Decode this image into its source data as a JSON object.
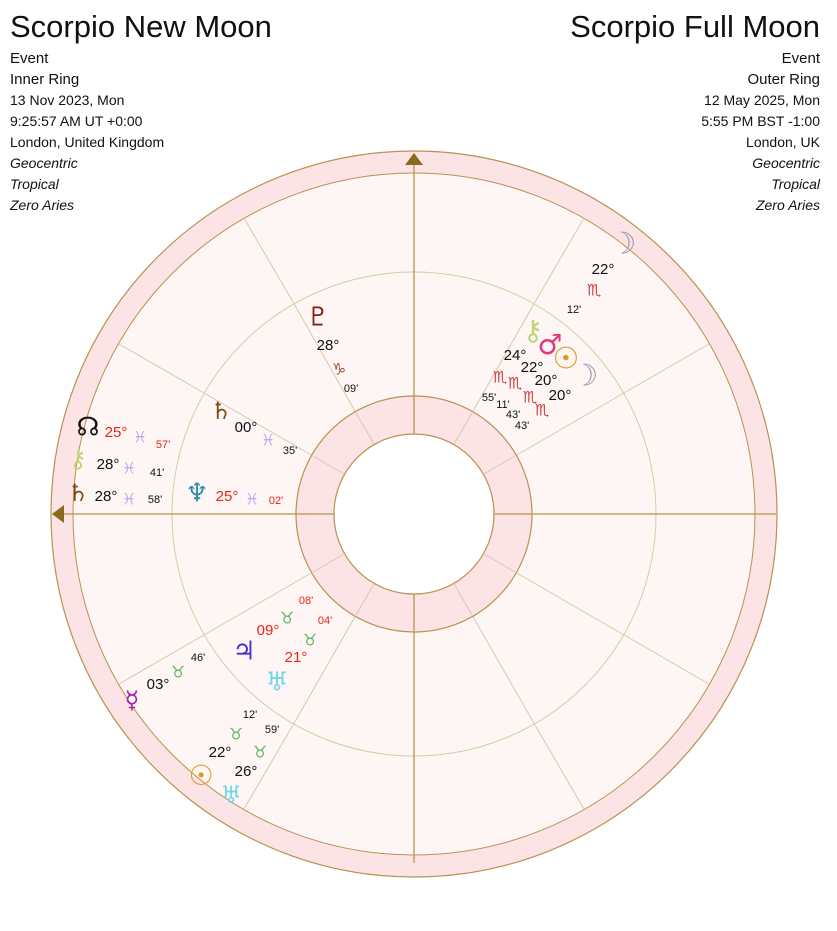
{
  "inner_chart": {
    "title": "Scorpio New Moon",
    "type": "Event",
    "ring": "Inner Ring",
    "date": "13 Nov 2023, Mon",
    "time": "9:25:57 AM UT +0:00",
    "location": "London, United Kingdom",
    "zodiac_lines": [
      "Geocentric",
      "Tropical",
      "Zero Aries"
    ]
  },
  "outer_chart": {
    "title": "Scorpio Full Moon",
    "type": "Event",
    "ring": "Outer Ring",
    "date": "12 May 2025, Mon",
    "time": "5:55 PM BST -1:00",
    "location": "London, UK",
    "zodiac_lines": [
      "Geocentric",
      "Tropical",
      "Zero Aries"
    ]
  },
  "colors": {
    "ring_fill": "#fbe3e6",
    "wheel_line": "#b8934f",
    "house_line": "#d7cba8",
    "axis_arrow": "#8a6a1e",
    "red_text": "#e8231a",
    "moon": "#9b9bab",
    "sun": "#e39820"
  },
  "placements": [
    {
      "icon": "moon-icon",
      "glyph": "☽",
      "color": "#9b9bab",
      "degree": "22°",
      "degree_color": "#111",
      "sign": "♏",
      "sign_color": "#d04040",
      "minute": "12'",
      "minute_color": "#111"
    },
    {
      "icon": "chiron-icon",
      "glyph": "⚷",
      "color": "#c0d470",
      "degree": "24°",
      "degree_color": "#111",
      "sign": "♏",
      "sign_color": "#d04040",
      "minute": "55'",
      "minute_color": "#111"
    },
    {
      "icon": "mars-icon",
      "glyph": "♂",
      "color": "#e8357a",
      "degree": "22°",
      "degree_color": "#111",
      "sign": "♏",
      "sign_color": "#d04040",
      "minute": "11'",
      "minute_color": "#111"
    },
    {
      "icon": "sun-icon",
      "glyph": "☉",
      "color": "#e39820",
      "degree": "20°",
      "degree_color": "#111",
      "sign": "♏",
      "sign_color": "#d04040",
      "minute": "43'",
      "minute_color": "#111"
    },
    {
      "icon": "moon-icon",
      "glyph": "☽",
      "color": "#9b9bab",
      "degree": "20°",
      "degree_color": "#111",
      "sign": "♏",
      "sign_color": "#d04040",
      "minute": "43'",
      "minute_color": "#111"
    },
    {
      "icon": "pluto-icon",
      "glyph": "♇",
      "color": "#8b1a10",
      "degree": "28°",
      "degree_color": "#111",
      "sign": "♑",
      "sign_color": "#a0503a",
      "minute": "09'",
      "minute_color": "#111"
    },
    {
      "icon": "saturn-icon",
      "glyph": "♄",
      "color": "#7a4a16",
      "degree": "00°",
      "degree_color": "#111",
      "sign": "♓",
      "sign_color": "#c4a8ef",
      "minute": "35'",
      "minute_color": "#111"
    },
    {
      "icon": "node-icon",
      "glyph": "☊",
      "color": "#111111",
      "degree": "25°",
      "degree_color": "#e8231a",
      "sign": "♓",
      "sign_color": "#c4a8ef",
      "minute": "57'",
      "minute_color": "#e8231a"
    },
    {
      "icon": "chiron-icon",
      "glyph": "⚷",
      "color": "#c0d470",
      "degree": "28°",
      "degree_color": "#111",
      "sign": "♓",
      "sign_color": "#c4a8ef",
      "minute": "41'",
      "minute_color": "#111"
    },
    {
      "icon": "saturn-icon",
      "glyph": "♄",
      "color": "#7a4a16",
      "degree": "28°",
      "degree_color": "#111",
      "sign": "♓",
      "sign_color": "#c4a8ef",
      "minute": "58'",
      "minute_color": "#111"
    },
    {
      "icon": "neptune-icon",
      "glyph": "♆",
      "color": "#2f8fa8",
      "degree": "25°",
      "degree_color": "#e8231a",
      "sign": "♓",
      "sign_color": "#c4a8ef",
      "minute": "02'",
      "minute_color": "#e8231a"
    },
    {
      "icon": "jupiter-icon",
      "glyph": "♃",
      "color": "#4433cc",
      "degree": "09°",
      "degree_color": "#e8231a",
      "sign": "♉",
      "sign_color": "#5cb85c",
      "minute": "08'",
      "minute_color": "#e8231a"
    },
    {
      "icon": "uranus-icon",
      "glyph": "♅",
      "color": "#6fd8ec",
      "degree": "21°",
      "degree_color": "#e8231a",
      "sign": "♉",
      "sign_color": "#5cb85c",
      "minute": "04'",
      "minute_color": "#e8231a"
    },
    {
      "icon": "mercury-icon",
      "glyph": "☿",
      "color": "#a726a7",
      "degree": "03°",
      "degree_color": "#111",
      "sign": "♉",
      "sign_color": "#5cb85c",
      "minute": "46'",
      "minute_color": "#111"
    },
    {
      "icon": "sun-icon",
      "glyph": "☉",
      "color": "#e39820",
      "degree": "22°",
      "degree_color": "#111",
      "sign": "♉",
      "sign_color": "#5cb85c",
      "minute": "12'",
      "minute_color": "#111"
    },
    {
      "icon": "uranus-icon",
      "glyph": "♅",
      "color": "#6fd8ec",
      "degree": "26°",
      "degree_color": "#111",
      "sign": "♉",
      "sign_color": "#5cb85c",
      "minute": "59'",
      "minute_color": "#111"
    }
  ]
}
